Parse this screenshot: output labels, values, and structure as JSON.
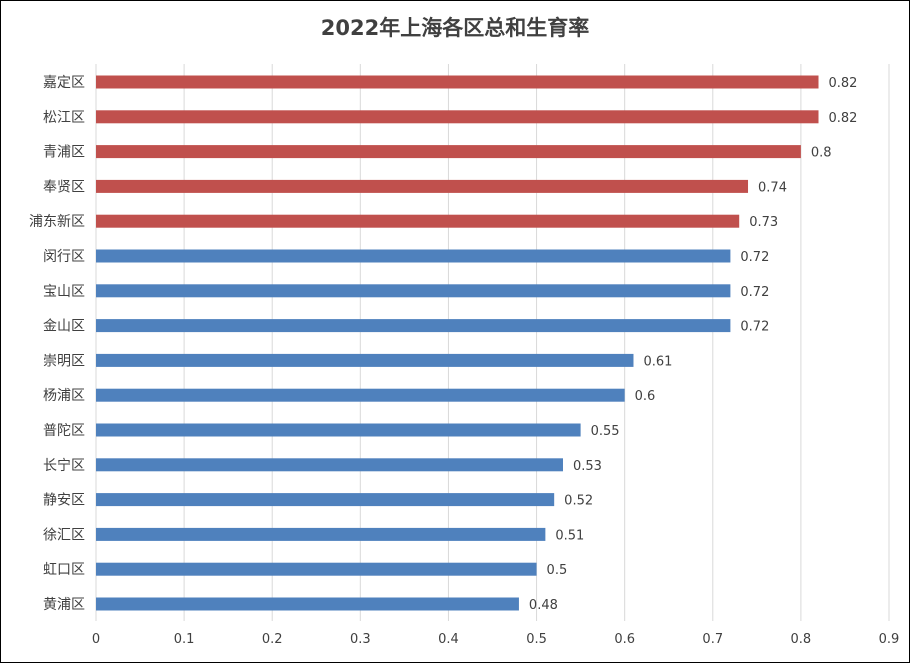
{
  "chart_data": {
    "type": "bar",
    "orientation": "horizontal",
    "title": "2022年上海各区总和生育率",
    "xlabel": "",
    "ylabel": "",
    "categories": [
      "嘉定区",
      "松江区",
      "青浦区",
      "奉贤区",
      "浦东新区",
      "闵行区",
      "宝山区",
      "金山区",
      "崇明区",
      "杨浦区",
      "普陀区",
      "长宁区",
      "静安区",
      "徐汇区",
      "虹口区",
      "黄浦区"
    ],
    "values": [
      0.82,
      0.82,
      0.8,
      0.74,
      0.73,
      0.72,
      0.72,
      0.72,
      0.61,
      0.6,
      0.55,
      0.53,
      0.52,
      0.51,
      0.5,
      0.48
    ],
    "value_labels": [
      "0.82",
      "0.82",
      "0.8",
      "0.74",
      "0.73",
      "0.72",
      "0.72",
      "0.72",
      "0.61",
      "0.6",
      "0.55",
      "0.53",
      "0.52",
      "0.51",
      "0.5",
      "0.48"
    ],
    "bar_colors": [
      "#c0504d",
      "#c0504d",
      "#c0504d",
      "#c0504d",
      "#c0504d",
      "#4f81bd",
      "#4f81bd",
      "#4f81bd",
      "#4f81bd",
      "#4f81bd",
      "#4f81bd",
      "#4f81bd",
      "#4f81bd",
      "#4f81bd",
      "#4f81bd",
      "#4f81bd"
    ],
    "xlim": [
      0,
      0.9
    ],
    "xticks": [
      "0",
      "0.1",
      "0.2",
      "0.3",
      "0.4",
      "0.5",
      "0.6",
      "0.7",
      "0.8",
      "0.9"
    ],
    "grid": "vertical",
    "legend": "none"
  }
}
